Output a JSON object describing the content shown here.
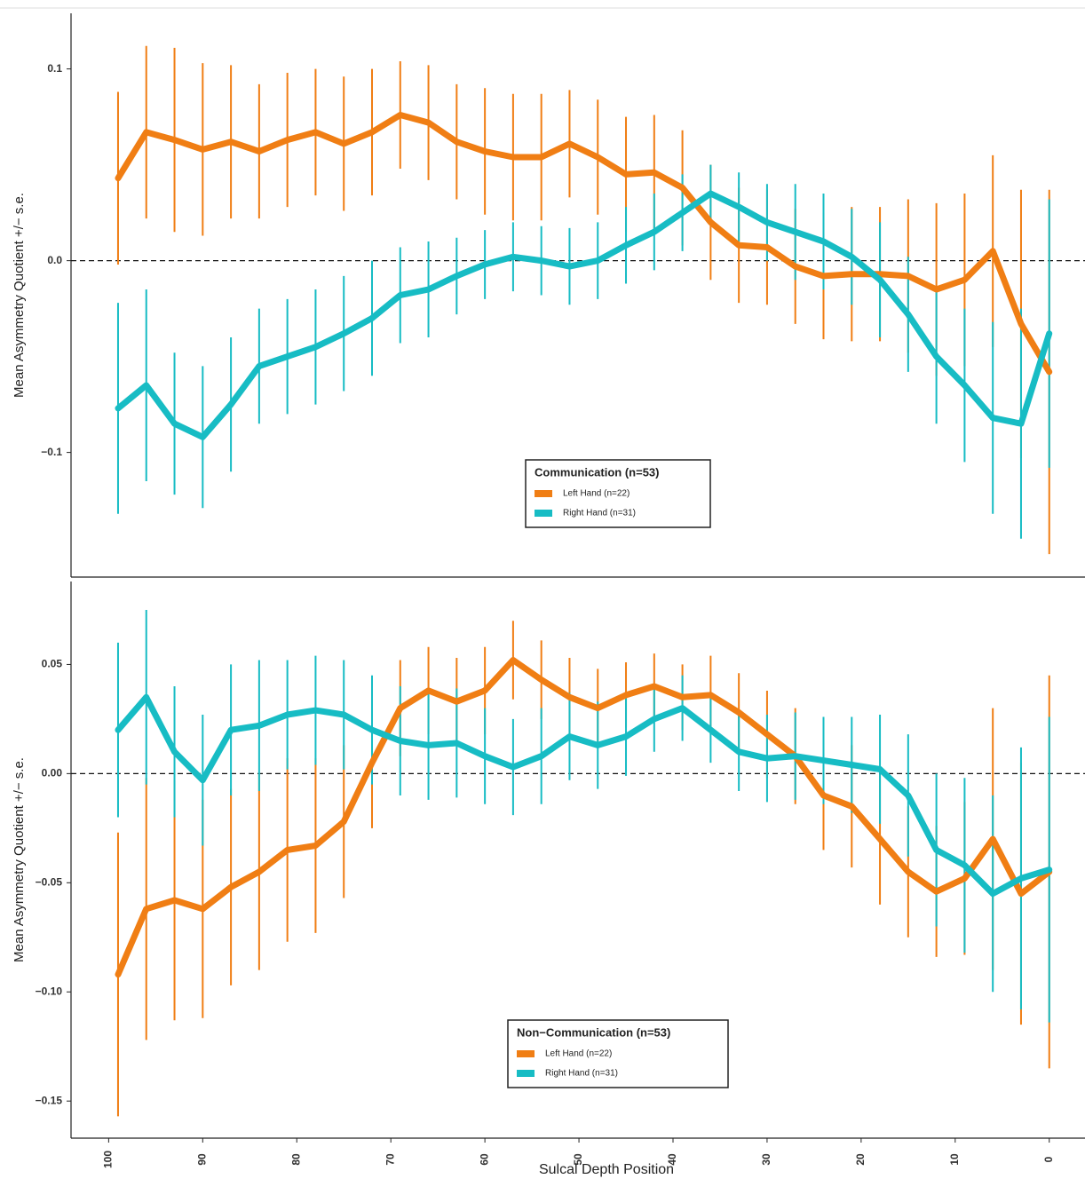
{
  "chart_data": [
    {
      "type": "line",
      "y_label": "Mean Asymmetry Quotient +/− s.e.",
      "x": [
        99,
        96,
        93,
        90,
        87,
        84,
        81,
        78,
        75,
        72,
        69,
        66,
        63,
        60,
        57,
        54,
        51,
        48,
        45,
        42,
        39,
        36,
        33,
        30,
        27,
        24,
        21,
        18,
        15,
        12,
        9,
        6,
        3,
        0
      ],
      "xlim": [
        104,
        -3.8
      ],
      "ylim": [
        -0.165,
        0.129
      ],
      "yticks": [
        0.1,
        {
          "value": 0,
          "label": "0.0"
        },
        {
          "value": -0.1,
          "label": "−0.1"
        }
      ],
      "reference_line": 0,
      "legend_title": "Communication (n=53)",
      "legend_position": "bottom-center",
      "series": [
        {
          "name": "Left Hand (n=22)",
          "color": "#f07e14",
          "values": [
            0.043,
            0.067,
            0.063,
            0.058,
            0.062,
            0.057,
            0.063,
            0.067,
            0.061,
            0.067,
            0.076,
            0.072,
            0.062,
            0.057,
            0.054,
            0.054,
            0.061,
            0.054,
            0.045,
            0.046,
            0.038,
            0.02,
            0.008,
            0.007,
            -0.003,
            -0.008,
            -0.007,
            -0.007,
            -0.008,
            -0.015,
            -0.01,
            0.005,
            -0.033,
            -0.058
          ],
          "se": [
            0.045,
            0.045,
            0.048,
            0.045,
            0.04,
            0.035,
            0.035,
            0.033,
            0.035,
            0.033,
            0.028,
            0.03,
            0.03,
            0.033,
            0.033,
            0.033,
            0.028,
            0.03,
            0.03,
            0.03,
            0.03,
            0.03,
            0.03,
            0.03,
            0.03,
            0.033,
            0.035,
            0.035,
            0.04,
            0.045,
            0.045,
            0.05,
            0.07,
            0.095
          ]
        },
        {
          "name": "Right Hand (n=31)",
          "color": "#17bcc4",
          "values": [
            -0.077,
            -0.065,
            -0.085,
            -0.092,
            -0.075,
            -0.055,
            -0.05,
            -0.045,
            -0.038,
            -0.03,
            -0.018,
            -0.015,
            -0.008,
            -0.002,
            0.002,
            0.0,
            -0.003,
            0.0,
            0.008,
            0.015,
            0.025,
            0.035,
            0.028,
            0.02,
            0.015,
            0.01,
            0.002,
            -0.01,
            -0.028,
            -0.05,
            -0.065,
            -0.082,
            -0.085,
            -0.038
          ],
          "se": [
            0.055,
            0.05,
            0.037,
            0.037,
            0.035,
            0.03,
            0.03,
            0.03,
            0.03,
            0.03,
            0.025,
            0.025,
            0.02,
            0.018,
            0.018,
            0.018,
            0.02,
            0.02,
            0.02,
            0.02,
            0.02,
            0.015,
            0.018,
            0.02,
            0.025,
            0.025,
            0.025,
            0.03,
            0.03,
            0.035,
            0.04,
            0.05,
            0.06,
            0.07
          ]
        }
      ]
    },
    {
      "type": "line",
      "y_label": "Mean Asymmetry Quotient +/− s.e.",
      "x_label": "Sulcal Depth Position",
      "x": [
        99,
        96,
        93,
        90,
        87,
        84,
        81,
        78,
        75,
        72,
        69,
        66,
        63,
        60,
        57,
        54,
        51,
        48,
        45,
        42,
        39,
        36,
        33,
        30,
        27,
        24,
        21,
        18,
        15,
        12,
        9,
        6,
        3,
        0
      ],
      "xlim": [
        104,
        -3.8
      ],
      "xticks": [
        100,
        90,
        80,
        70,
        60,
        50,
        40,
        30,
        20,
        10,
        0
      ],
      "ylim": [
        -0.167,
        0.088
      ],
      "yticks": [
        0.05,
        {
          "value": 0,
          "label": "0.00"
        },
        {
          "value": -0.05,
          "label": "−0.05"
        },
        {
          "value": -0.1,
          "label": "−0.10"
        },
        {
          "value": -0.15,
          "label": "−0.15"
        }
      ],
      "reference_line": 0,
      "legend_title": "Non−Communication (n=53)",
      "legend_position": "bottom-center",
      "series": [
        {
          "name": "Left Hand (n=22)",
          "color": "#f07e14",
          "values": [
            -0.092,
            -0.062,
            -0.058,
            -0.062,
            -0.052,
            -0.045,
            -0.035,
            -0.033,
            -0.022,
            0.005,
            0.03,
            0.038,
            0.033,
            0.038,
            0.052,
            0.043,
            0.035,
            0.03,
            0.036,
            0.04,
            0.035,
            0.036,
            0.028,
            0.018,
            0.008,
            -0.01,
            -0.015,
            -0.03,
            -0.045,
            -0.054,
            -0.048,
            -0.03,
            -0.055,
            -0.045
          ],
          "se": [
            0.065,
            0.06,
            0.055,
            0.05,
            0.045,
            0.045,
            0.042,
            0.04,
            0.035,
            0.03,
            0.022,
            0.02,
            0.02,
            0.02,
            0.018,
            0.018,
            0.018,
            0.018,
            0.015,
            0.015,
            0.015,
            0.018,
            0.018,
            0.02,
            0.022,
            0.025,
            0.028,
            0.03,
            0.03,
            0.03,
            0.035,
            0.06,
            0.06,
            0.09
          ]
        },
        {
          "name": "Right Hand (n=31)",
          "color": "#17bcc4",
          "values": [
            0.02,
            0.035,
            0.01,
            -0.003,
            0.02,
            0.022,
            0.027,
            0.029,
            0.027,
            0.02,
            0.015,
            0.013,
            0.014,
            0.008,
            0.003,
            0.008,
            0.017,
            0.013,
            0.017,
            0.025,
            0.03,
            0.02,
            0.01,
            0.007,
            0.008,
            0.006,
            0.004,
            0.002,
            -0.01,
            -0.035,
            -0.042,
            -0.055,
            -0.048,
            -0.044
          ],
          "se": [
            0.04,
            0.04,
            0.03,
            0.03,
            0.03,
            0.03,
            0.025,
            0.025,
            0.025,
            0.025,
            0.025,
            0.025,
            0.025,
            0.022,
            0.022,
            0.022,
            0.02,
            0.02,
            0.018,
            0.015,
            0.015,
            0.015,
            0.018,
            0.02,
            0.02,
            0.02,
            0.022,
            0.025,
            0.028,
            0.035,
            0.04,
            0.045,
            0.06,
            0.07
          ]
        }
      ]
    }
  ]
}
